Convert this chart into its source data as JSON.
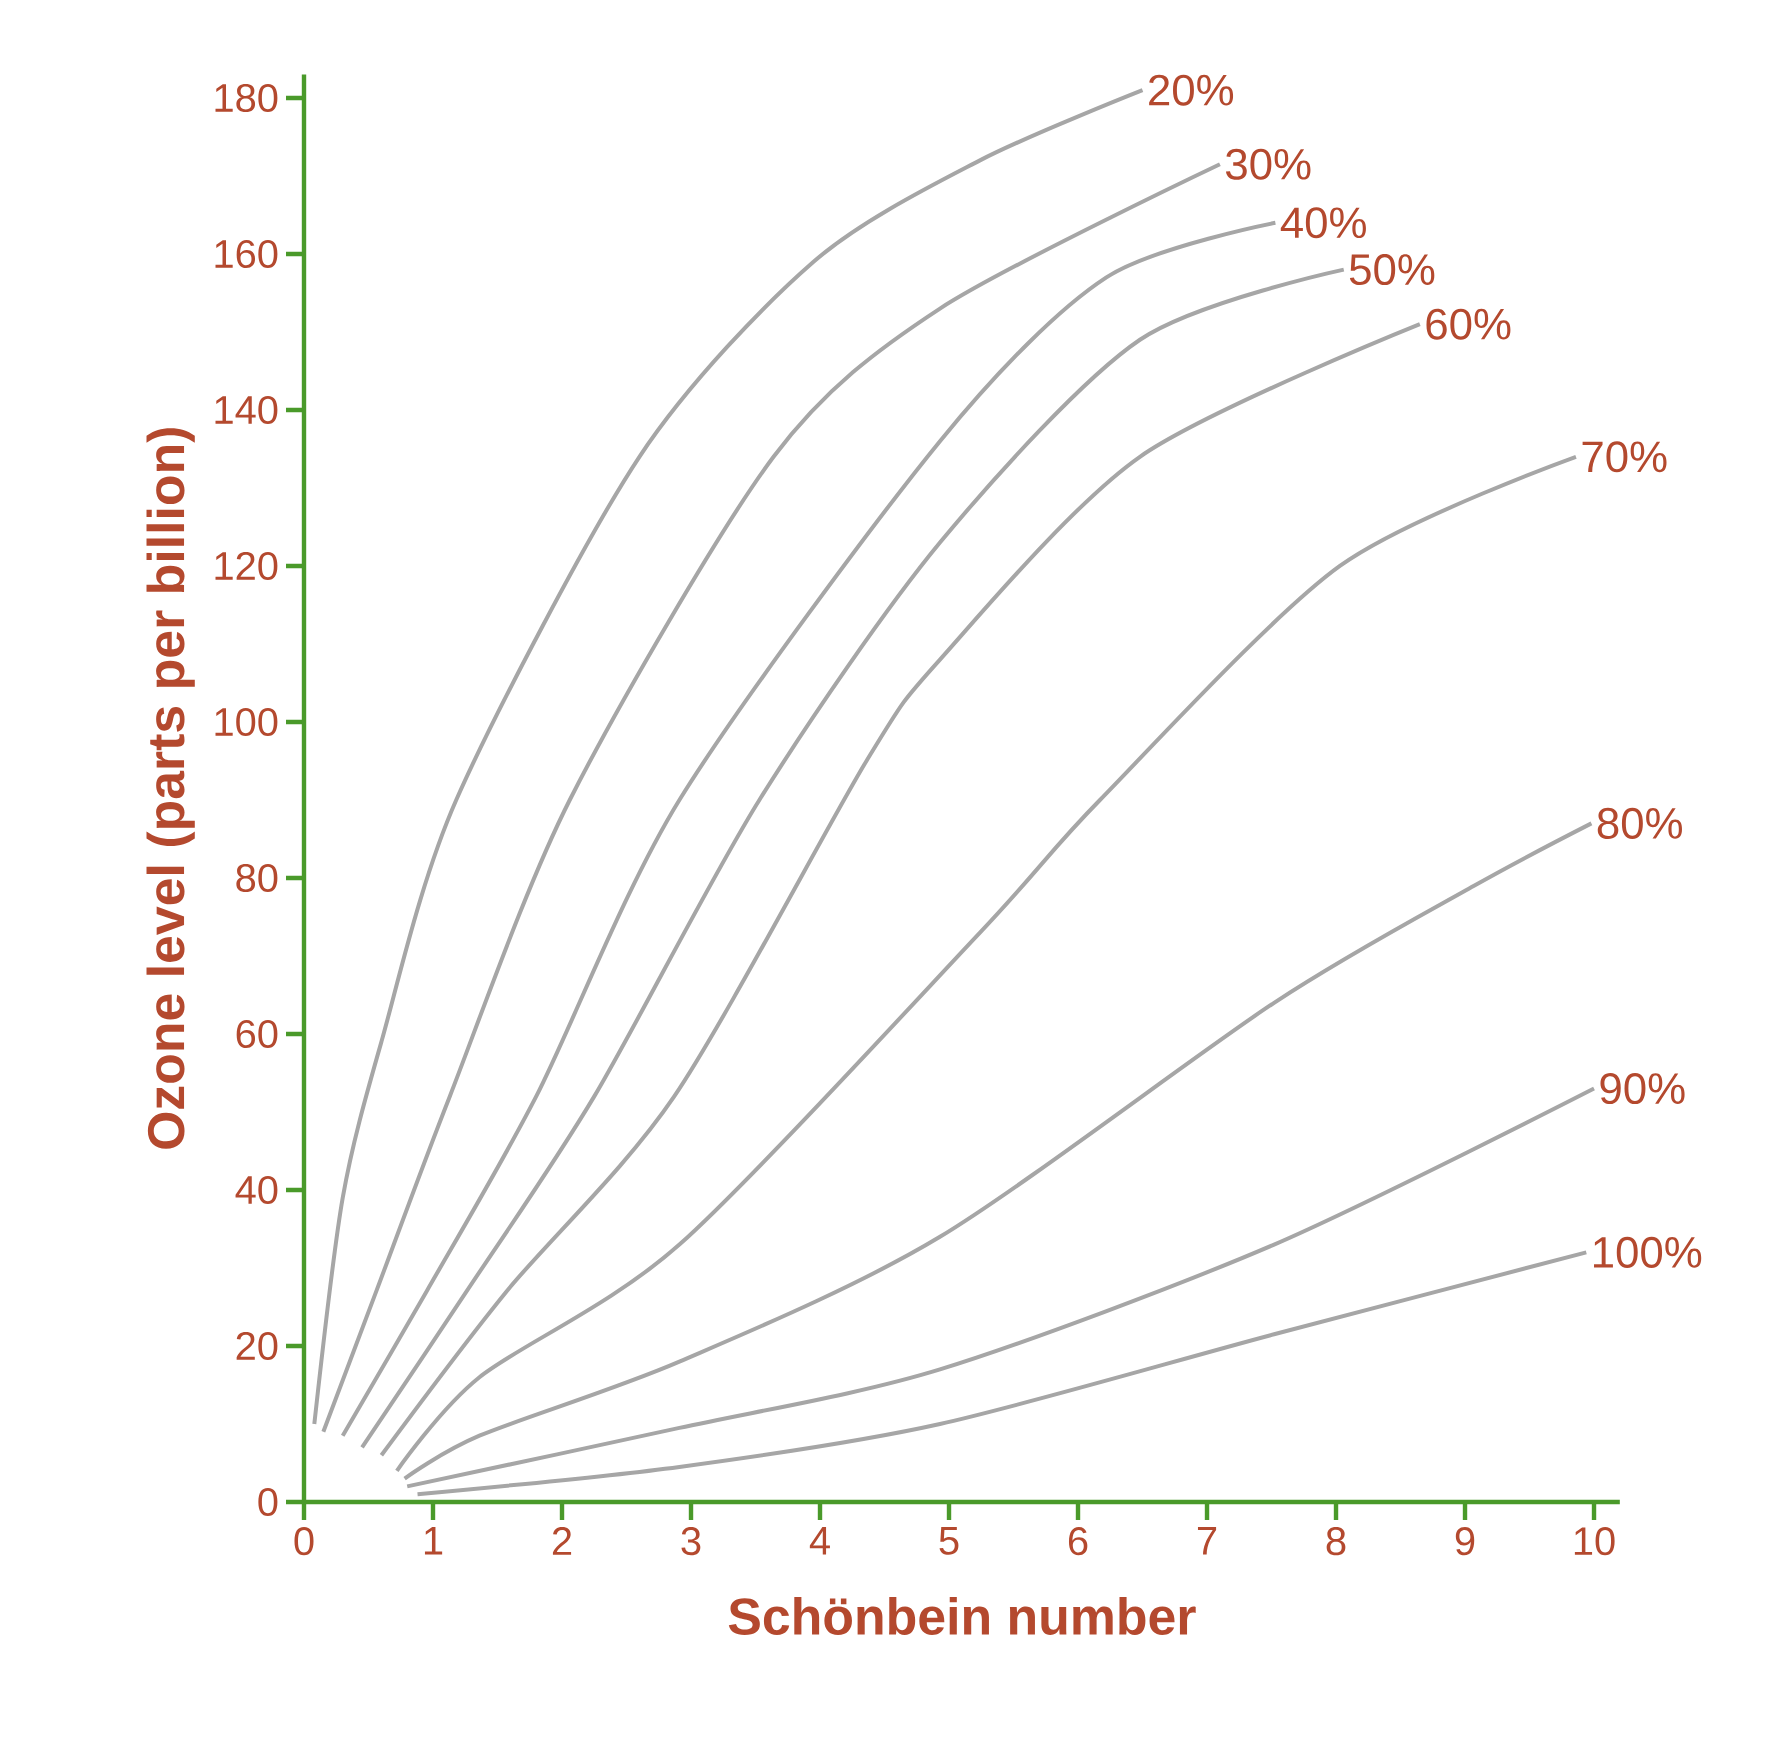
{
  "chart_data": {
    "type": "line",
    "xlabel": "Schönbein number",
    "ylabel": "Ozone level (parts per billion)",
    "xlim": [
      0,
      10.2
    ],
    "ylim": [
      0,
      183
    ],
    "xticks": [
      0,
      1,
      2,
      3,
      4,
      5,
      6,
      7,
      8,
      9,
      10
    ],
    "yticks": [
      0,
      20,
      40,
      60,
      80,
      100,
      120,
      140,
      160,
      180
    ],
    "marker": "none",
    "line_style": "solid",
    "series": [
      {
        "name": "20%",
        "color": "#a6a6a6",
        "x": [
          0.08,
          0.3,
          0.6,
          1.18,
          2.6,
          3.95,
          5.24,
          6.5
        ],
        "values": [
          10,
          39,
          59,
          90,
          134,
          159,
          172,
          181
        ]
      },
      {
        "name": "30%",
        "color": "#a6a6a6",
        "x": [
          0.15,
          0.56,
          1.13,
          2.06,
          3.64,
          4.93,
          7.1
        ],
        "values": [
          9,
          27,
          52,
          90,
          134,
          153,
          171.5
        ]
      },
      {
        "name": "40%",
        "color": "#a6a6a6",
        "x": [
          0.3,
          0.95,
          1.8,
          2.91,
          4.93,
          6.22,
          7.53
        ],
        "values": [
          8.5,
          27,
          52,
          90,
          136,
          157,
          164
        ]
      },
      {
        "name": "50%",
        "color": "#a6a6a6",
        "x": [
          0.45,
          1.26,
          2.25,
          3.53,
          4.93,
          6.48,
          8.06
        ],
        "values": [
          7,
          27,
          52,
          90,
          123,
          149,
          158
        ]
      },
      {
        "name": "60%",
        "color": "#a6a6a6",
        "x": [
          0.6,
          1.57,
          2.87,
          4.36,
          4.93,
          6.48,
          8.65
        ],
        "values": [
          6,
          27,
          52,
          95,
          108,
          134,
          151
        ]
      },
      {
        "name": "70%",
        "color": "#a6a6a6",
        "x": [
          0.72,
          1.36,
          2.91,
          5.24,
          6.17,
          8.03,
          9.86
        ],
        "values": [
          4,
          16,
          33,
          73,
          90,
          120,
          134
        ]
      },
      {
        "name": "80%",
        "color": "#a6a6a6",
        "x": [
          0.78,
          1.36,
          2.91,
          4.93,
          7.52,
          9.07,
          9.98
        ],
        "values": [
          3,
          8.5,
          18,
          34,
          64,
          79,
          87
        ]
      },
      {
        "name": "90%",
        "color": "#a6a6a6",
        "x": [
          0.8,
          2.91,
          4.93,
          7.52,
          10
        ],
        "values": [
          2,
          9.5,
          17,
          33,
          53
        ]
      },
      {
        "name": "100%",
        "color": "#a6a6a6",
        "x": [
          0.88,
          2.91,
          4.93,
          7.52,
          9.94
        ],
        "values": [
          1,
          4.5,
          10,
          21.5,
          32
        ]
      }
    ]
  }
}
